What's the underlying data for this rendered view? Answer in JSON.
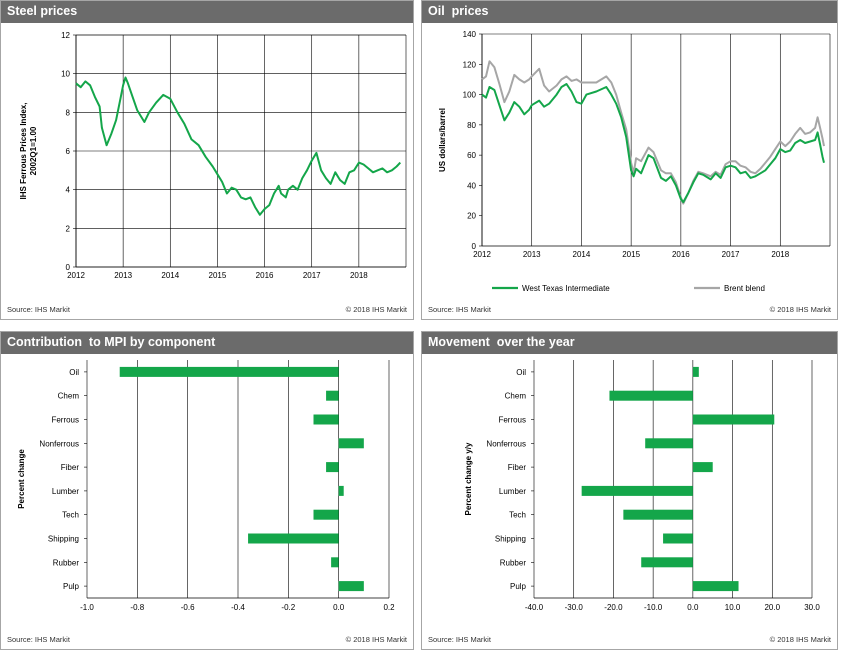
{
  "colors": {
    "green": "#14a64a",
    "grey": "#a6a6a6",
    "header": "#6b6b6b"
  },
  "footers": {
    "source": "Source:  IHS Markit",
    "copyright": "© 2018  IHS Markit"
  },
  "panels": {
    "steel": {
      "title": "Steel prices"
    },
    "oil": {
      "title": "Oil  prices"
    },
    "mpi": {
      "title": "Contribution  to MPI by component"
    },
    "movement": {
      "title": "Movement  over the year"
    }
  },
  "chart_data": [
    {
      "type": "line",
      "ylabel": "IHS Ferrous Prices Index,\n2002Q1=1.00",
      "xlim": [
        2012,
        2019
      ],
      "ylim": [
        0,
        12
      ],
      "xticks": [
        2012,
        2013,
        2014,
        2015,
        2016,
        2017,
        2018
      ],
      "yticks": [
        0,
        2,
        4,
        6,
        8,
        10,
        12
      ],
      "grid": "vertical and horizontal",
      "series": [
        {
          "color": "green",
          "points": [
            [
              2012.0,
              9.5
            ],
            [
              2012.1,
              9.3
            ],
            [
              2012.2,
              9.6
            ],
            [
              2012.3,
              9.4
            ],
            [
              2012.4,
              8.8
            ],
            [
              2012.5,
              8.3
            ],
            [
              2012.55,
              7.2
            ],
            [
              2012.65,
              6.3
            ],
            [
              2012.75,
              6.9
            ],
            [
              2012.85,
              7.6
            ],
            [
              2012.95,
              8.8
            ],
            [
              2013.0,
              9.4
            ],
            [
              2013.05,
              9.8
            ],
            [
              2013.1,
              9.5
            ],
            [
              2013.2,
              8.8
            ],
            [
              2013.3,
              8.1
            ],
            [
              2013.45,
              7.5
            ],
            [
              2013.55,
              8.0
            ],
            [
              2013.7,
              8.5
            ],
            [
              2013.85,
              8.9
            ],
            [
              2014.0,
              8.7
            ],
            [
              2014.15,
              8.0
            ],
            [
              2014.3,
              7.4
            ],
            [
              2014.45,
              6.6
            ],
            [
              2014.6,
              6.3
            ],
            [
              2014.75,
              5.7
            ],
            [
              2014.9,
              5.2
            ],
            [
              2015.0,
              4.8
            ],
            [
              2015.1,
              4.4
            ],
            [
              2015.2,
              3.8
            ],
            [
              2015.3,
              4.1
            ],
            [
              2015.4,
              4.0
            ],
            [
              2015.5,
              3.6
            ],
            [
              2015.6,
              3.5
            ],
            [
              2015.7,
              3.6
            ],
            [
              2015.8,
              3.1
            ],
            [
              2015.9,
              2.7
            ],
            [
              2016.0,
              3.0
            ],
            [
              2016.1,
              3.2
            ],
            [
              2016.2,
              3.8
            ],
            [
              2016.3,
              4.2
            ],
            [
              2016.35,
              3.8
            ],
            [
              2016.45,
              3.6
            ],
            [
              2016.5,
              4.0
            ],
            [
              2016.6,
              4.2
            ],
            [
              2016.7,
              4.0
            ],
            [
              2016.8,
              4.6
            ],
            [
              2016.9,
              5.0
            ],
            [
              2017.0,
              5.5
            ],
            [
              2017.1,
              5.9
            ],
            [
              2017.2,
              5.0
            ],
            [
              2017.3,
              4.6
            ],
            [
              2017.4,
              4.3
            ],
            [
              2017.5,
              4.9
            ],
            [
              2017.6,
              4.5
            ],
            [
              2017.7,
              4.3
            ],
            [
              2017.8,
              4.9
            ],
            [
              2017.9,
              5.0
            ],
            [
              2018.0,
              5.4
            ],
            [
              2018.1,
              5.3
            ],
            [
              2018.2,
              5.1
            ],
            [
              2018.3,
              4.9
            ],
            [
              2018.4,
              5.0
            ],
            [
              2018.5,
              5.1
            ],
            [
              2018.6,
              4.9
            ],
            [
              2018.7,
              5.0
            ],
            [
              2018.8,
              5.2
            ],
            [
              2018.88,
              5.4
            ]
          ]
        }
      ]
    },
    {
      "type": "line",
      "ylabel": "US dollars/barrel",
      "xlim": [
        2012,
        2019
      ],
      "ylim": [
        0,
        140
      ],
      "xticks": [
        2012,
        2013,
        2014,
        2015,
        2016,
        2017,
        2018
      ],
      "yticks": [
        0,
        20,
        40,
        60,
        80,
        100,
        120,
        140
      ],
      "grid": "vertical only",
      "legend_position": "bottom",
      "series": [
        {
          "name": "West Texas Intermediate",
          "color": "green",
          "points": [
            [
              2012.0,
              100
            ],
            [
              2012.08,
              98
            ],
            [
              2012.15,
              105
            ],
            [
              2012.25,
              103
            ],
            [
              2012.35,
              93
            ],
            [
              2012.45,
              83
            ],
            [
              2012.55,
              88
            ],
            [
              2012.65,
              95
            ],
            [
              2012.75,
              92
            ],
            [
              2012.85,
              87
            ],
            [
              2012.95,
              90
            ],
            [
              2013.0,
              93
            ],
            [
              2013.15,
              96
            ],
            [
              2013.25,
              92
            ],
            [
              2013.35,
              94
            ],
            [
              2013.5,
              100
            ],
            [
              2013.6,
              105
            ],
            [
              2013.7,
              107
            ],
            [
              2013.8,
              102
            ],
            [
              2013.9,
              95
            ],
            [
              2014.0,
              94
            ],
            [
              2014.1,
              100
            ],
            [
              2014.3,
              102
            ],
            [
              2014.5,
              105
            ],
            [
              2014.6,
              100
            ],
            [
              2014.7,
              94
            ],
            [
              2014.8,
              85
            ],
            [
              2014.9,
              72
            ],
            [
              2015.0,
              50
            ],
            [
              2015.05,
              46
            ],
            [
              2015.1,
              51
            ],
            [
              2015.2,
              48
            ],
            [
              2015.35,
              60
            ],
            [
              2015.45,
              58
            ],
            [
              2015.6,
              45
            ],
            [
              2015.7,
              43
            ],
            [
              2015.8,
              46
            ],
            [
              2015.9,
              40
            ],
            [
              2016.0,
              31
            ],
            [
              2016.05,
              29
            ],
            [
              2016.15,
              35
            ],
            [
              2016.25,
              42
            ],
            [
              2016.35,
              48
            ],
            [
              2016.45,
              47
            ],
            [
              2016.6,
              44
            ],
            [
              2016.7,
              48
            ],
            [
              2016.8,
              45
            ],
            [
              2016.9,
              52
            ],
            [
              2017.0,
              53
            ],
            [
              2017.1,
              52
            ],
            [
              2017.2,
              48
            ],
            [
              2017.3,
              49
            ],
            [
              2017.4,
              45
            ],
            [
              2017.5,
              46
            ],
            [
              2017.6,
              48
            ],
            [
              2017.7,
              50
            ],
            [
              2017.8,
              54
            ],
            [
              2017.9,
              58
            ],
            [
              2018.0,
              64
            ],
            [
              2018.1,
              62
            ],
            [
              2018.2,
              63
            ],
            [
              2018.3,
              68
            ],
            [
              2018.4,
              70
            ],
            [
              2018.5,
              68
            ],
            [
              2018.6,
              69
            ],
            [
              2018.7,
              70
            ],
            [
              2018.75,
              75
            ],
            [
              2018.8,
              67
            ],
            [
              2018.85,
              59
            ],
            [
              2018.88,
              55
            ]
          ]
        },
        {
          "name": "Brent blend",
          "color": "grey",
          "points": [
            [
              2012.0,
              110
            ],
            [
              2012.08,
              112
            ],
            [
              2012.15,
              122
            ],
            [
              2012.25,
              118
            ],
            [
              2012.35,
              107
            ],
            [
              2012.45,
              95
            ],
            [
              2012.55,
              102
            ],
            [
              2012.65,
              113
            ],
            [
              2012.75,
              110
            ],
            [
              2012.85,
              108
            ],
            [
              2012.95,
              110
            ],
            [
              2013.0,
              112
            ],
            [
              2013.15,
              117
            ],
            [
              2013.25,
              106
            ],
            [
              2013.35,
              102
            ],
            [
              2013.5,
              106
            ],
            [
              2013.6,
              110
            ],
            [
              2013.7,
              112
            ],
            [
              2013.8,
              109
            ],
            [
              2013.9,
              110
            ],
            [
              2014.0,
              108
            ],
            [
              2014.1,
              108
            ],
            [
              2014.3,
              108
            ],
            [
              2014.5,
              112
            ],
            [
              2014.6,
              108
            ],
            [
              2014.7,
              100
            ],
            [
              2014.8,
              88
            ],
            [
              2014.9,
              77
            ],
            [
              2015.0,
              55
            ],
            [
              2015.05,
              48
            ],
            [
              2015.1,
              58
            ],
            [
              2015.2,
              56
            ],
            [
              2015.35,
              65
            ],
            [
              2015.45,
              62
            ],
            [
              2015.6,
              50
            ],
            [
              2015.7,
              48
            ],
            [
              2015.8,
              48
            ],
            [
              2015.9,
              42
            ],
            [
              2016.0,
              32
            ],
            [
              2016.05,
              28
            ],
            [
              2016.15,
              35
            ],
            [
              2016.25,
              43
            ],
            [
              2016.35,
              49
            ],
            [
              2016.45,
              48
            ],
            [
              2016.6,
              46
            ],
            [
              2016.7,
              49
            ],
            [
              2016.8,
              47
            ],
            [
              2016.9,
              54
            ],
            [
              2017.0,
              56
            ],
            [
              2017.1,
              56
            ],
            [
              2017.2,
              53
            ],
            [
              2017.3,
              52
            ],
            [
              2017.4,
              49
            ],
            [
              2017.5,
              48
            ],
            [
              2017.6,
              51
            ],
            [
              2017.7,
              55
            ],
            [
              2017.8,
              59
            ],
            [
              2017.9,
              64
            ],
            [
              2018.0,
              69
            ],
            [
              2018.1,
              66
            ],
            [
              2018.2,
              69
            ],
            [
              2018.3,
              74
            ],
            [
              2018.4,
              78
            ],
            [
              2018.5,
              74
            ],
            [
              2018.6,
              75
            ],
            [
              2018.7,
              78
            ],
            [
              2018.75,
              85
            ],
            [
              2018.8,
              78
            ],
            [
              2018.85,
              71
            ],
            [
              2018.88,
              66
            ]
          ]
        }
      ]
    },
    {
      "type": "bar",
      "orientation": "horizontal",
      "ylabel": "Percent change",
      "xlim": [
        -1.0,
        0.2
      ],
      "xticks": [
        -1.0,
        -0.8,
        -0.6,
        -0.4,
        -0.2,
        0.0,
        0.2
      ],
      "xtick_labels": [
        "-1.0",
        "-0.8",
        "-0.6",
        "-0.4",
        "-0.2",
        "0.0",
        "0.2"
      ],
      "grid": "vertical only",
      "categories": [
        "Oil",
        "Chem",
        "Ferrous",
        "Nonferrous",
        "Fiber",
        "Lumber",
        "Tech",
        "Shipping",
        "Rubber",
        "Pulp"
      ],
      "values": [
        -0.87,
        -0.05,
        -0.1,
        0.1,
        -0.05,
        0.02,
        -0.1,
        -0.36,
        -0.03,
        0.1
      ]
    },
    {
      "type": "bar",
      "orientation": "horizontal",
      "ylabel": "Percent change y/y",
      "xlim": [
        -40,
        30
      ],
      "xticks": [
        -40,
        -30,
        -20,
        -10,
        0,
        10,
        20,
        30
      ],
      "xtick_labels": [
        "-40.0",
        "-30.0",
        "-20.0",
        "-10.0",
        "0.0",
        "10.0",
        "20.0",
        "30.0"
      ],
      "grid": "vertical only",
      "categories": [
        "Oil",
        "Chem",
        "Ferrous",
        "Nonferrous",
        "Fiber",
        "Lumber",
        "Tech",
        "Shipping",
        "Rubber",
        "Pulp"
      ],
      "values": [
        1.5,
        -21,
        20.5,
        -12,
        5,
        -28,
        -17.5,
        -7.5,
        -13,
        11.5
      ]
    }
  ]
}
